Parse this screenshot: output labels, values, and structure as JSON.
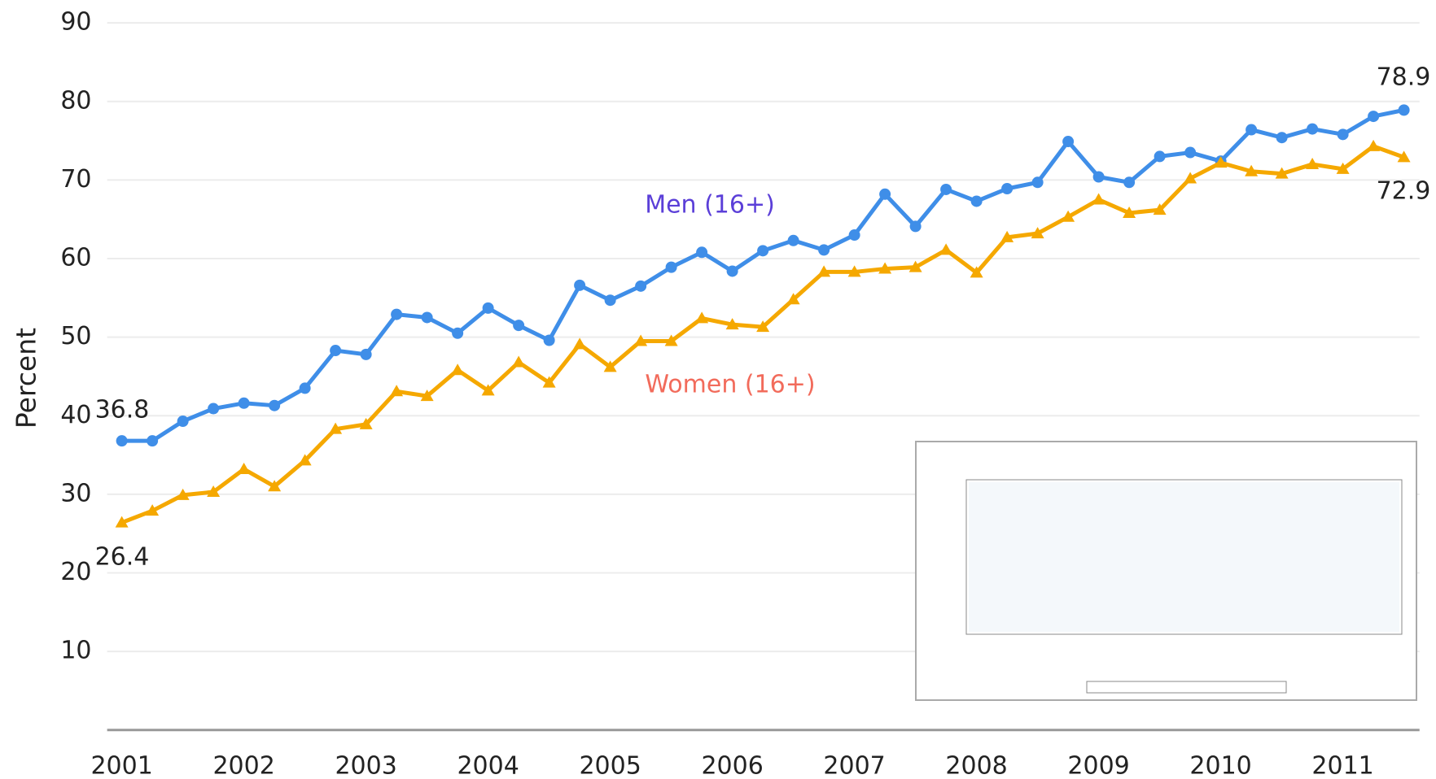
{
  "chart_data": {
    "type": "line",
    "y_label": "Percent",
    "categories": [
      "2001",
      null,
      null,
      null,
      "2002",
      null,
      null,
      null,
      "2003",
      null,
      null,
      null,
      "2004",
      null,
      null,
      null,
      "2005",
      null,
      null,
      null,
      "2006",
      null,
      null,
      null,
      "2007",
      null,
      null,
      null,
      "2008",
      null,
      null,
      null,
      "2009",
      null,
      null,
      null,
      "2010",
      null,
      null,
      null,
      "2011",
      null,
      null
    ],
    "series": [
      {
        "name": "Men (16+)",
        "color": "#3f8ee8",
        "label_color": "#5b3fd8",
        "values": [
          36.8,
          36.8,
          39.3,
          40.9,
          41.6,
          41.3,
          43.5,
          48.3,
          47.8,
          52.9,
          52.5,
          50.5,
          53.7,
          51.5,
          49.6,
          56.6,
          54.7,
          56.5,
          58.9,
          60.8,
          58.4,
          61.0,
          62.3,
          61.1,
          63.0,
          68.2,
          64.1,
          68.8,
          67.3,
          68.9,
          69.7,
          74.9,
          70.4,
          69.7,
          73.0,
          73.5,
          72.4,
          76.4,
          75.4,
          76.5,
          75.8,
          78.1,
          78.9
        ]
      },
      {
        "name": "Women (16+)",
        "color": "#f5a800",
        "label_color": "#f26b5b",
        "values": [
          26.4,
          27.9,
          29.9,
          30.3,
          33.2,
          31.0,
          34.3,
          38.3,
          38.9,
          43.1,
          42.5,
          45.8,
          43.2,
          46.8,
          44.2,
          49.1,
          46.2,
          49.5,
          49.5,
          52.4,
          51.6,
          51.3,
          54.8,
          58.3,
          58.3,
          58.7,
          58.9,
          61.1,
          58.2,
          62.7,
          63.2,
          65.3,
          67.5,
          65.8,
          66.2,
          70.2,
          72.2,
          71.1,
          70.8,
          72.0,
          71.4,
          74.3,
          72.9
        ]
      }
    ],
    "ylim": [
      0,
      90
    ],
    "yticks": [
      10,
      20,
      30,
      40,
      50,
      60,
      70,
      80,
      90
    ],
    "grid": true
  }
}
